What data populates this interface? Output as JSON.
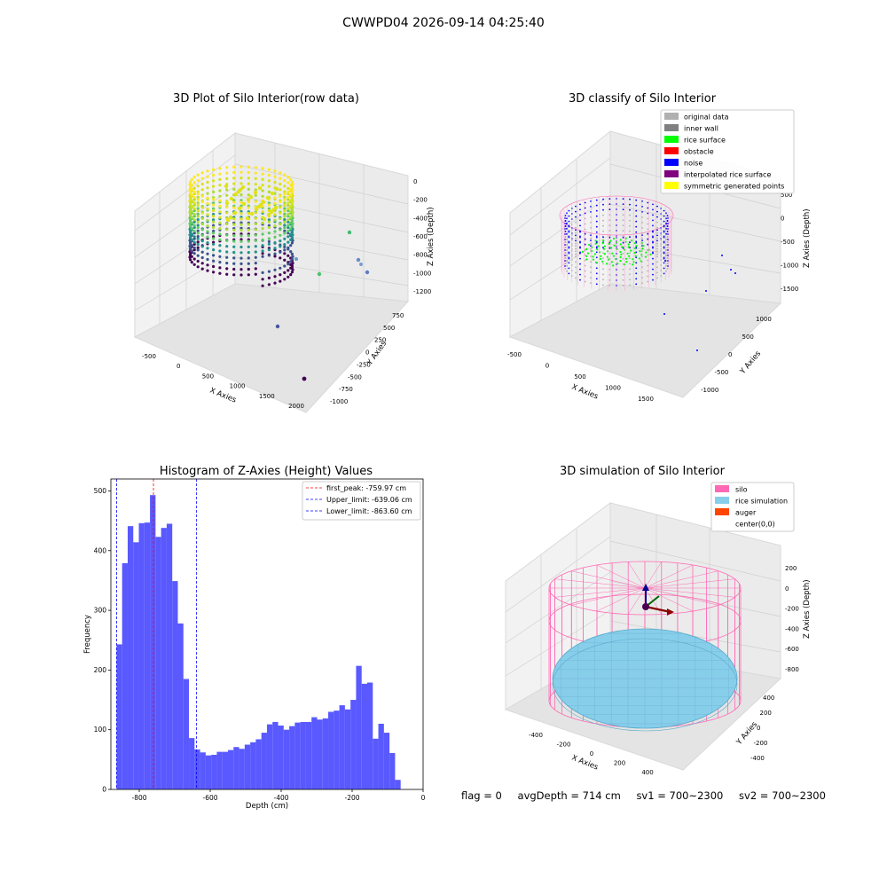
{
  "suptitle": "CWWPD04 2026-09-14 04:25:40",
  "status": {
    "flag": "flag = 0",
    "avg_depth": "avgDepth = 714 cm",
    "sv1": "sv1 = 700~2300",
    "sv2": "sv2 = 700~2300"
  },
  "colors": {
    "hist_bar": "#5050ff",
    "peak_line": "#ff0000",
    "limit_line": "#0000ff",
    "silo": "#ff69b4",
    "rice_sim": "#87ceeb",
    "auger": "#ff4500",
    "original": "#b0b0b0",
    "inner_wall": "#808080",
    "rice_surface": "#00ff00",
    "obstacle": "#ff0000",
    "noise": "#0000ff",
    "interpolated": "#800080",
    "symmetric": "#ffff00"
  },
  "chart_data": [
    {
      "id": "raw3d",
      "type": "scatter",
      "projection": "3d",
      "title": "3D Plot of Silo Interior(row data)",
      "xlabel": "X Axies",
      "ylabel": "Y Axies",
      "zlabel": "Z Axies (Depth)",
      "x_ticks": [
        "-500",
        "0",
        "500",
        "1000",
        "1500",
        "2000"
      ],
      "y_ticks": [
        "-1000",
        "-750",
        "-500",
        "-250",
        "0",
        "250",
        "500",
        "750"
      ],
      "z_ticks": [
        "0",
        "-200",
        "-400",
        "-600",
        "-800",
        "-1000",
        "-1200"
      ],
      "colormap": "viridis"
    },
    {
      "id": "classify3d",
      "type": "scatter",
      "projection": "3d",
      "title": "3D classify of Silo Interior",
      "xlabel": "X Axies",
      "ylabel": "Y Axies",
      "zlabel": "Z Axies (Depth)",
      "x_ticks": [
        "-500",
        "0",
        "500",
        "1000",
        "1500"
      ],
      "y_ticks": [
        "-1000",
        "-500",
        "0",
        "500",
        "1000"
      ],
      "z_ticks": [
        "500",
        "0",
        "-500",
        "-1000",
        "-1500"
      ],
      "legend": [
        "original data",
        "inner wall",
        "rice surface",
        "obstacle",
        "noise",
        "interpolated rice surface",
        "symmetric generated points"
      ],
      "legend_position": "top-right"
    },
    {
      "id": "hist",
      "type": "bar",
      "title": "Histogram of Z-Axies (Height) Values",
      "xlabel": "Depth (cm)",
      "ylabel": "Frequency",
      "xlim": [
        -880,
        0
      ],
      "ylim": [
        0,
        520
      ],
      "x_ticks": [
        -800,
        -600,
        -400,
        -200,
        0
      ],
      "y_ticks": [
        0,
        100,
        200,
        300,
        400,
        500
      ],
      "bin_start": -864,
      "bin_width": 15.7,
      "values": [
        243,
        379,
        441,
        414,
        446,
        447,
        493,
        423,
        438,
        445,
        349,
        278,
        185,
        86,
        67,
        62,
        57,
        58,
        63,
        63,
        66,
        71,
        68,
        75,
        79,
        84,
        95,
        109,
        113,
        107,
        100,
        106,
        112,
        113,
        113,
        121,
        117,
        119,
        130,
        132,
        141,
        134,
        150,
        207,
        177,
        179,
        85,
        110,
        95,
        61,
        16
      ],
      "lines": [
        {
          "label": "first_peak: -759.97 cm",
          "x": -759.97,
          "style": "red-dashed"
        },
        {
          "label": "Upper_limit: -639.06 cm",
          "x": -639.06,
          "style": "blue-dashed"
        },
        {
          "label": "Lower_limit: -863.60 cm",
          "x": -863.6,
          "style": "blue-dashed"
        }
      ],
      "legend_position": "top-right",
      "grid": false
    },
    {
      "id": "sim3d",
      "type": "surface",
      "projection": "3d",
      "title": "3D simulation of Silo Interior",
      "xlabel": "X Axies",
      "ylabel": "Y Axies",
      "zlabel": "Z Axies (Depth)",
      "x_ticks": [
        "-400",
        "-200",
        "0",
        "200",
        "400"
      ],
      "y_ticks": [
        "-400",
        "-200",
        "0",
        "200",
        "400"
      ],
      "z_ticks": [
        "200",
        "0",
        "-200",
        "-400",
        "-600",
        "-800"
      ],
      "legend": [
        "silo",
        "rice simulation",
        "auger",
        "center(0,0)"
      ],
      "legend_position": "top-right"
    }
  ]
}
